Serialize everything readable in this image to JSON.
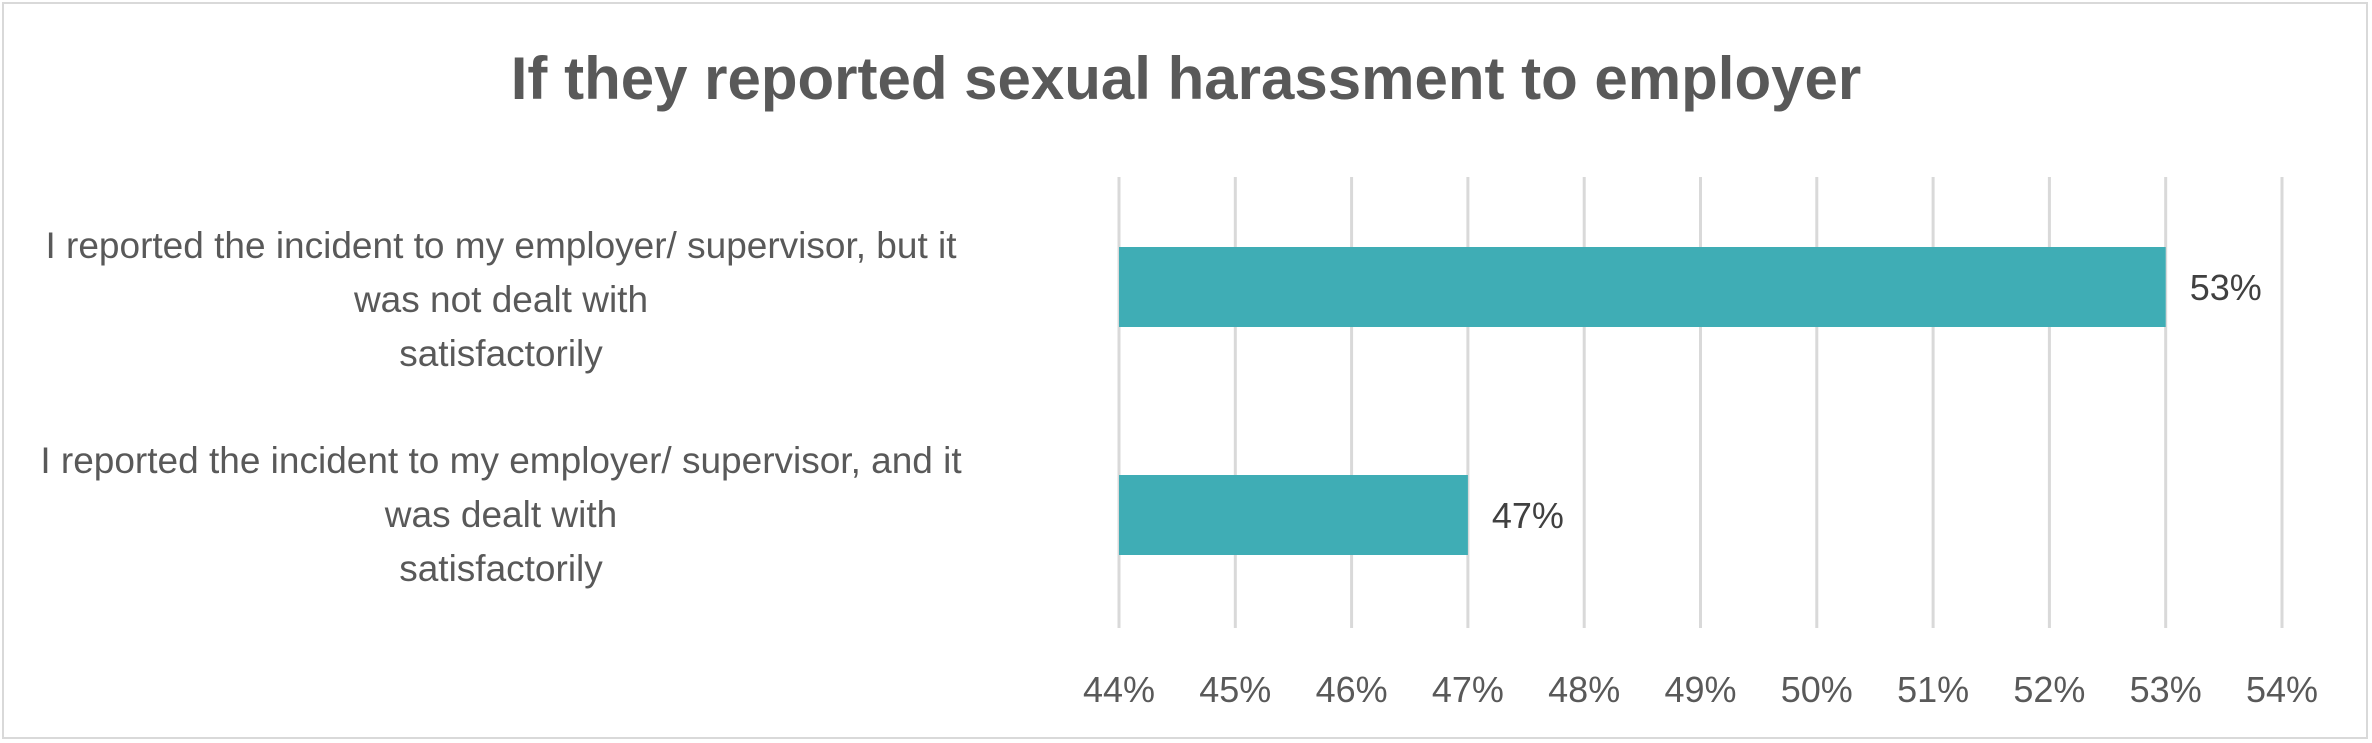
{
  "chart_data": {
    "type": "bar",
    "orientation": "horizontal",
    "title": "If they reported sexual harassment to employer",
    "categories": [
      "I reported the incident to my employer/ supervisor, but it\nwas not dealt with\nsatisfactorily",
      "I reported the incident to my employer/ supervisor, and it\nwas dealt with\nsatisfactorily"
    ],
    "values": [
      53,
      47
    ],
    "data_labels": [
      "53%",
      "47%"
    ],
    "xlim": [
      44,
      54
    ],
    "xticks": [
      44,
      45,
      46,
      47,
      48,
      49,
      50,
      51,
      52,
      53,
      54
    ],
    "xtick_labels": [
      "44%",
      "45%",
      "46%",
      "47%",
      "48%",
      "49%",
      "50%",
      "51%",
      "52%",
      "53%",
      "54%"
    ],
    "grid": "vertical",
    "legend": "none",
    "bar_color": "#3fadb5",
    "grid_color": "#d9d9d9",
    "text_color": "#595959"
  }
}
